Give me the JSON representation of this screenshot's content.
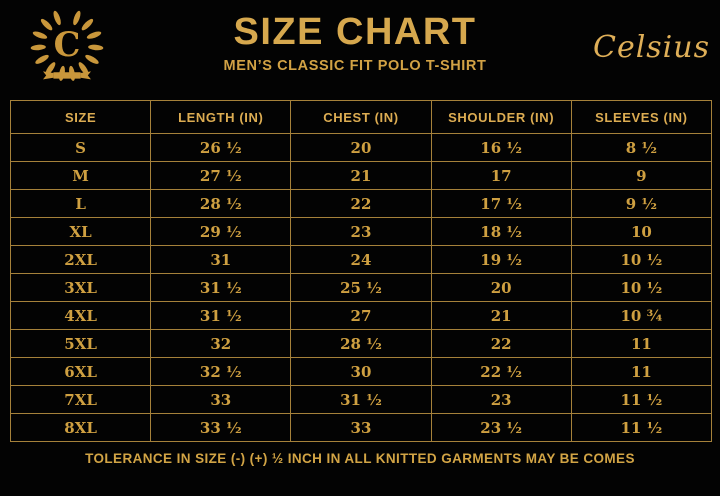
{
  "header": {
    "logo_letter": "C",
    "title": "SIZE CHART",
    "subtitle": "MEN’S CLASSIC FIT POLO T-SHIRT",
    "brand": "Celsius"
  },
  "chart_data": {
    "type": "table",
    "title": "SIZE CHART",
    "subtitle": "MEN’S CLASSIC FIT POLO T-SHIRT",
    "units": "inches",
    "columns": [
      "SIZE",
      "LENGTH (IN)",
      "CHEST (IN)",
      "SHOULDER (IN)",
      "SLEEVES (IN)"
    ],
    "rows": [
      [
        "S",
        "26 ½",
        "20",
        "16 ½",
        "8 ½"
      ],
      [
        "M",
        "27 ½",
        "21",
        "17",
        "9"
      ],
      [
        "L",
        "28 ½",
        "22",
        "17 ½",
        "9 ½"
      ],
      [
        "XL",
        "29 ½",
        "23",
        "18 ½",
        "10"
      ],
      [
        "2XL",
        "31",
        "24",
        "19 ½",
        "10 ½"
      ],
      [
        "3XL",
        "31 ½",
        "25 ½",
        "20",
        "10 ½"
      ],
      [
        "4XL",
        "31 ½",
        "27",
        "21",
        "10 ¾"
      ],
      [
        "5XL",
        "32",
        "28 ½",
        "22",
        "11"
      ],
      [
        "6XL",
        "32 ½",
        "30",
        "22 ½",
        "11"
      ],
      [
        "7XL",
        "33",
        "31 ½",
        "23",
        "11 ½"
      ],
      [
        "8XL",
        "33 ½",
        "33",
        "23 ½",
        "11 ½"
      ]
    ]
  },
  "footer": {
    "note": "TOLERANCE IN SIZE (-) (+) ½ INCH IN ALL KNITTED GARMENTS MAY BE COMES"
  },
  "colors": {
    "background": "#030303",
    "gold_title": "#D6A84E",
    "gold_text": "#CFA041",
    "gold_border": "#A5813A",
    "gold_brand": "#DFAF58"
  }
}
